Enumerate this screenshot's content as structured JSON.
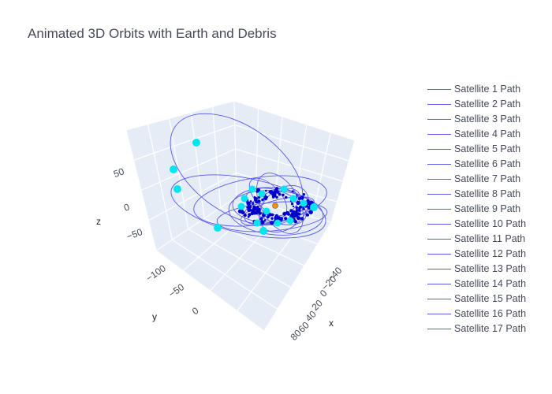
{
  "chart_data": {
    "type": "scatter3d",
    "title": "Animated 3D Orbits with Earth and Debris",
    "axes": {
      "x": {
        "label": "x",
        "tick_labels": [
          "−40",
          "−20",
          "0",
          "20",
          "40",
          "60",
          "80"
        ]
      },
      "y": {
        "label": "y",
        "tick_labels": [
          "−100",
          "−50",
          "0"
        ]
      },
      "z": {
        "label": "z",
        "tick_labels": [
          "50",
          "0",
          "−50"
        ]
      }
    },
    "legend_position": "right",
    "legend": [
      "Satellite 1 Path",
      "Satellite 2 Path",
      "Satellite 3 Path",
      "Satellite 4 Path",
      "Satellite 5 Path",
      "Satellite 6 Path",
      "Satellite 7 Path",
      "Satellite 8 Path",
      "Satellite 9 Path",
      "Satellite 10 Path",
      "Satellite 11 Path",
      "Satellite 12 Path",
      "Satellite 13 Path",
      "Satellite 14 Path",
      "Satellite 15 Path",
      "Satellite 16 Path",
      "Satellite 17 Path"
    ],
    "colors": {
      "path": "#5a5be6",
      "satellite_marker": "#00e5ee",
      "debris_marker": "#0000cc",
      "earth": "#ff8c00",
      "scene_wall": "#e5ecf6",
      "grid": "#ffffff"
    },
    "satellite_markers": [
      {
        "name": "Satellite 1"
      },
      {
        "name": "Satellite 2"
      },
      {
        "name": "Satellite 3"
      },
      {
        "name": "Satellite 4"
      },
      {
        "name": "Satellite 5"
      },
      {
        "name": "Satellite 6"
      },
      {
        "name": "Satellite 7"
      },
      {
        "name": "Satellite 8"
      },
      {
        "name": "Satellite 9"
      },
      {
        "name": "Satellite 10"
      },
      {
        "name": "Satellite 11"
      },
      {
        "name": "Satellite 12"
      },
      {
        "name": "Satellite 13"
      },
      {
        "name": "Satellite 14"
      },
      {
        "name": "Satellite 15"
      },
      {
        "name": "Satellite 16"
      },
      {
        "name": "Satellite 17"
      }
    ]
  }
}
